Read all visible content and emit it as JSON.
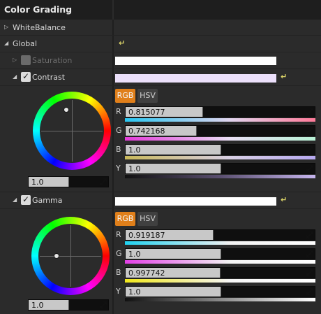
{
  "header": {
    "title": "Color Grading"
  },
  "sections": {
    "white_balance": {
      "label": "WhiteBalance",
      "expanded": false
    },
    "global": {
      "label": "Global",
      "expanded": true,
      "reset_icon": "reset-arrow-icon"
    }
  },
  "saturation": {
    "label": "Saturation",
    "checked": false,
    "enabled": false,
    "expanded": false,
    "swatch_color": "#ffffff"
  },
  "contrast": {
    "label": "Contrast",
    "checked": true,
    "expanded": true,
    "swatch_color": "#ece0fb",
    "tabs": {
      "rgb": "RGB",
      "hsv": "HSV",
      "active": "RGB"
    },
    "wheel_value": "1.0",
    "channels": [
      {
        "name": "R",
        "value": "0.815077",
        "level": 0.815077
      },
      {
        "name": "G",
        "value": "0.742168",
        "level": 0.742168
      },
      {
        "name": "B",
        "value": "1.0",
        "level": 1.0
      },
      {
        "name": "Y",
        "value": "1.0",
        "level": 1.0
      }
    ]
  },
  "gamma": {
    "label": "Gamma",
    "checked": true,
    "expanded": true,
    "swatch_color": "#ffffff",
    "tabs": {
      "rgb": "RGB",
      "hsv": "HSV",
      "active": "RGB"
    },
    "wheel_value": "1.0",
    "channels": [
      {
        "name": "R",
        "value": "0.919187",
        "level": 0.919187
      },
      {
        "name": "G",
        "value": "1.0",
        "level": 1.0
      },
      {
        "name": "B",
        "value": "0.997742",
        "level": 0.997742
      },
      {
        "name": "Y",
        "value": "1.0",
        "level": 1.0
      }
    ]
  },
  "colors": {
    "accent": "#e07f1a",
    "reset": "#e0d86a"
  }
}
